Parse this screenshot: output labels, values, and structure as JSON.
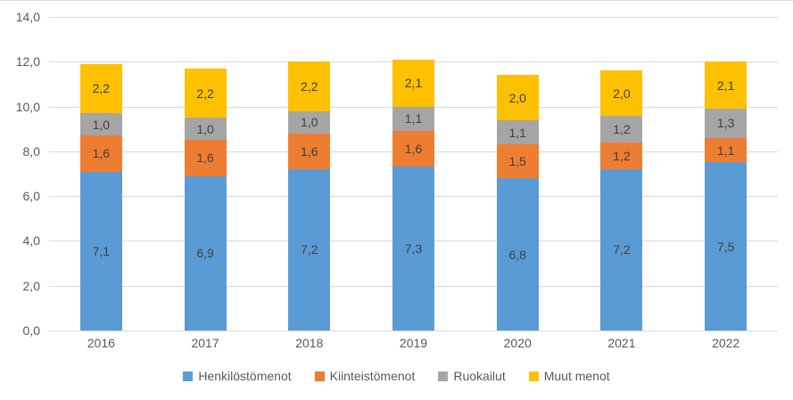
{
  "chart_data": {
    "type": "bar",
    "stacked": true,
    "title": "",
    "categories": [
      "2016",
      "2017",
      "2018",
      "2019",
      "2020",
      "2021",
      "2022"
    ],
    "series": [
      {
        "name": "Henkilöstömenot",
        "color": "#5B9BD5",
        "values": [
          7.1,
          6.9,
          7.2,
          7.3,
          6.8,
          7.2,
          7.5
        ],
        "labels": [
          "7,1",
          "6,9",
          "7,2",
          "7,3",
          "6,8",
          "7,2",
          "7,5"
        ]
      },
      {
        "name": "Kiinteistömenot",
        "color": "#ED7D31",
        "values": [
          1.6,
          1.6,
          1.6,
          1.6,
          1.5,
          1.2,
          1.1
        ],
        "labels": [
          "1,6",
          "1,6",
          "1,6",
          "1,6",
          "1,5",
          "1,2",
          "1,1"
        ]
      },
      {
        "name": "Ruokailut",
        "color": "#A5A5A5",
        "values": [
          1.0,
          1.0,
          1.0,
          1.1,
          1.1,
          1.2,
          1.3
        ],
        "labels": [
          "1,0",
          "1,0",
          "1,0",
          "1,1",
          "1,1",
          "1,2",
          "1,3"
        ]
      },
      {
        "name": "Muut menot",
        "color": "#FFC000",
        "values": [
          2.2,
          2.2,
          2.2,
          2.1,
          2.0,
          2.0,
          2.1
        ],
        "labels": [
          "2,2",
          "2,2",
          "2,2",
          "2,1",
          "2,0",
          "2,0",
          "2,1"
        ]
      }
    ],
    "y_ticks": [
      {
        "value": 0,
        "label": "0,0"
      },
      {
        "value": 2,
        "label": "2,0"
      },
      {
        "value": 4,
        "label": "4,0"
      },
      {
        "value": 6,
        "label": "6,0"
      },
      {
        "value": 8,
        "label": "8,0"
      },
      {
        "value": 10,
        "label": "10,0"
      },
      {
        "value": 12,
        "label": "12,0"
      },
      {
        "value": 14,
        "label": "14,0"
      }
    ],
    "ylim": [
      0,
      14
    ],
    "xlabel": "",
    "ylabel": "",
    "grid": true,
    "legend_position": "bottom",
    "colors": {
      "gridline": "#D9D9D9",
      "axis_text": "#595959",
      "data_label": "#404040",
      "background": "#FFFFFF",
      "border": "#D9D9D9"
    }
  }
}
